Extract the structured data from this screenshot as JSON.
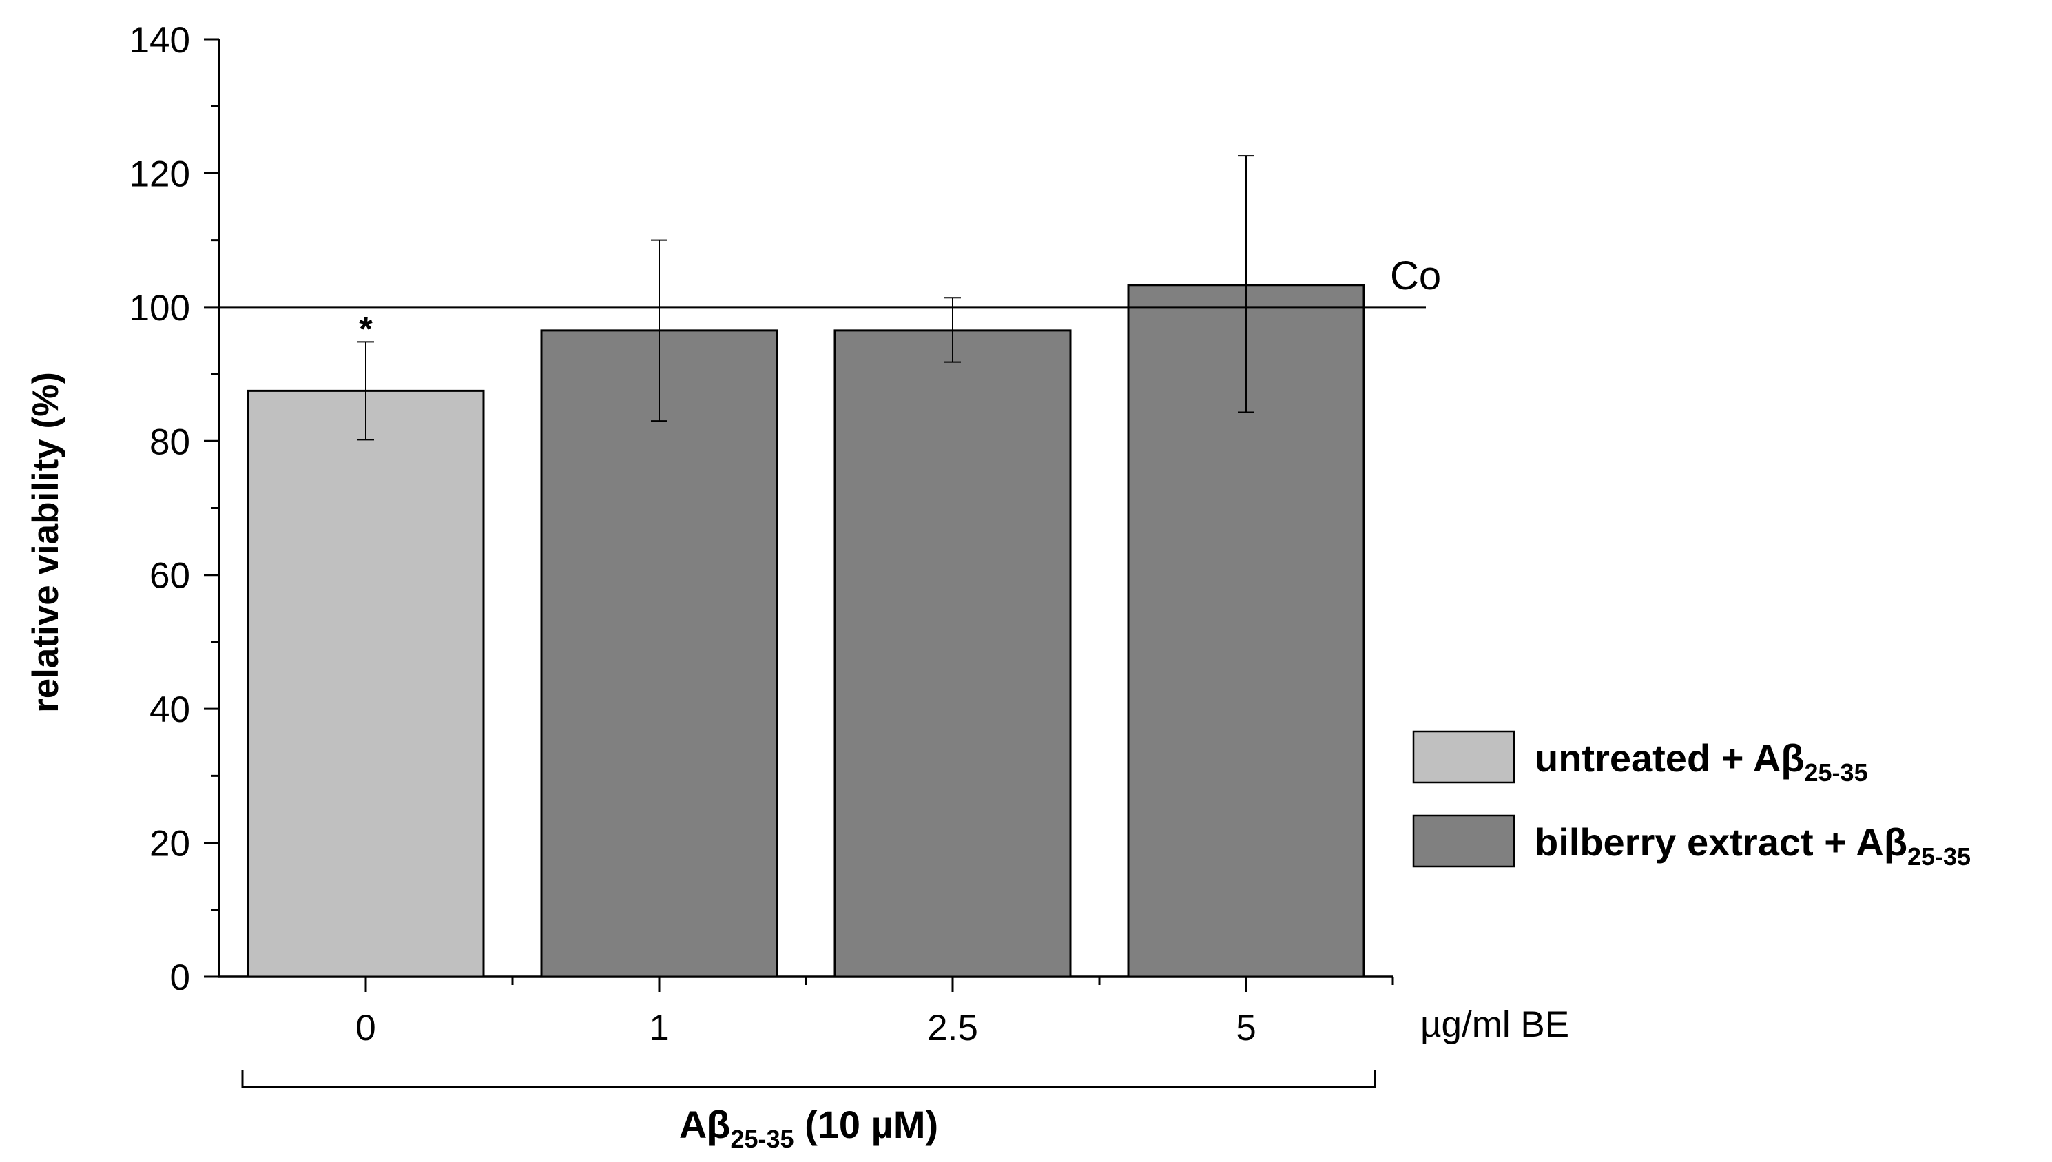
{
  "chart_data": {
    "type": "bar",
    "ylabel": "relative viability (%)",
    "ylim": [
      0,
      140
    ],
    "yticks": [
      0,
      20,
      40,
      60,
      80,
      100,
      120,
      140
    ],
    "categories": [
      "0",
      "1",
      "2.5",
      "5"
    ],
    "x_unit_label": "µg/ml BE",
    "values": [
      87.5,
      96.5,
      96.5,
      103.3
    ],
    "errors_high": [
      94.8,
      110.0,
      101.4,
      122.6
    ],
    "errors_low": [
      80.2,
      83.0,
      91.8,
      84.3
    ],
    "bar_colors": [
      "#c0c0c0",
      "#808080",
      "#808080",
      "#808080"
    ],
    "significance": [
      {
        "index": 0,
        "label": "*"
      }
    ],
    "reference_line": {
      "value": 100,
      "label": "Co"
    },
    "legend": [
      {
        "main": "untreated + Aβ",
        "sub": "25-35",
        "color": "#c0c0c0"
      },
      {
        "main": "bilberry extract + Aβ",
        "sub": "25-35",
        "color": "#808080"
      }
    ],
    "legend_placement": "right",
    "bracket": {
      "main": "Aβ",
      "sub": "25-35",
      "suffix": " (10 µM)"
    },
    "grid": false
  }
}
